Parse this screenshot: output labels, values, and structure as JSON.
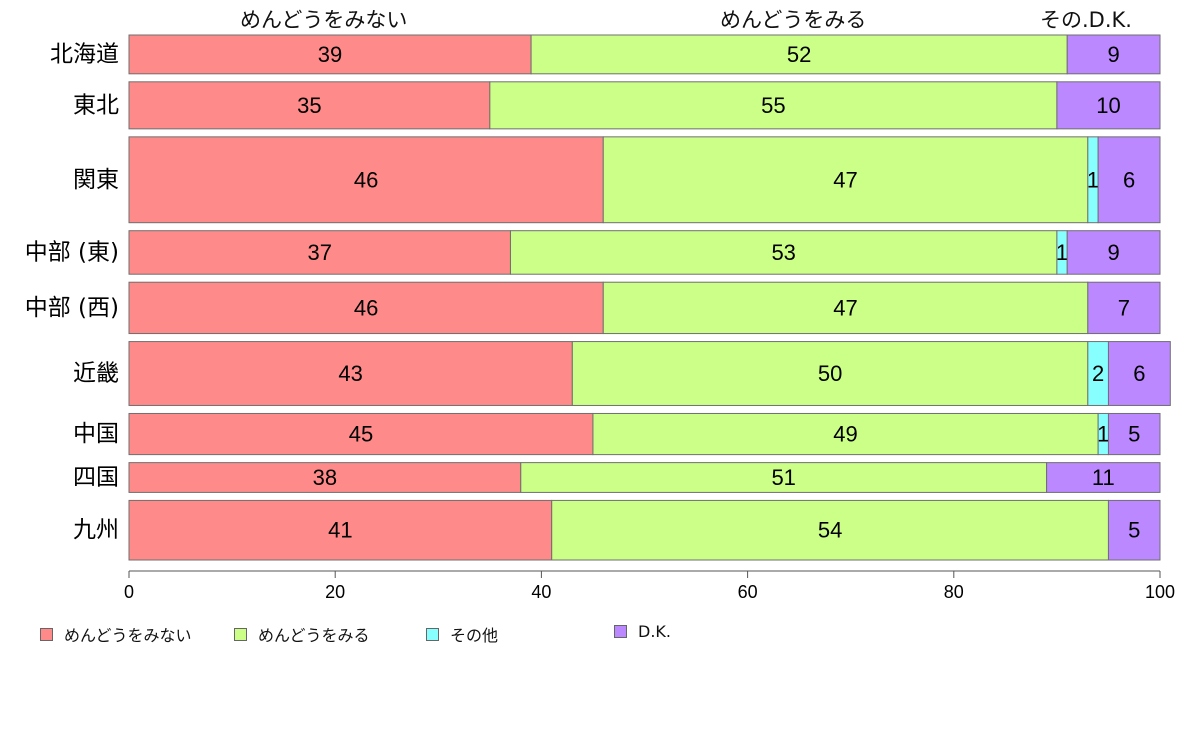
{
  "column_headers": [
    "めんどうをみない",
    "めんどうをみる",
    "その.D.K."
  ],
  "legend": [
    {
      "label": "めんどうをみない",
      "color": "#FF8A8A"
    },
    {
      "label": "めんどうをみる",
      "color": "#CCFF88"
    },
    {
      "label": "その他",
      "color": "#88FFFF"
    },
    {
      "label": "D.K.",
      "color": "#BB88FF"
    }
  ],
  "chart_data": {
    "type": "bar",
    "orientation": "horizontal-stacked",
    "categories": [
      "北海道",
      "東北",
      "関東",
      "中部 (東)",
      "中部 (西)",
      "近畿",
      "中国",
      "四国",
      "九州"
    ],
    "series": [
      {
        "name": "めんどうをみない",
        "values": [
          39,
          35,
          46,
          37,
          46,
          43,
          45,
          38,
          41
        ],
        "labels": [
          "39",
          "35",
          "46",
          "37",
          "46",
          "43",
          "45",
          "38",
          "41"
        ]
      },
      {
        "name": "めんどうをみる",
        "values": [
          52,
          55,
          47,
          53,
          47,
          50,
          49,
          51,
          54
        ],
        "labels": [
          "52",
          "55",
          "47",
          "53",
          "47",
          "50",
          "49",
          "51",
          "54"
        ]
      },
      {
        "name": "その他",
        "values": [
          0,
          0,
          1,
          1,
          0,
          2,
          1,
          0,
          0
        ],
        "labels": [
          "",
          "",
          "1",
          "1",
          "",
          "2",
          "1",
          "",
          ""
        ]
      },
      {
        "name": "D.K.",
        "values": [
          9,
          10,
          6,
          9,
          7,
          6,
          5,
          11,
          5
        ],
        "labels": [
          "9",
          "10",
          "6",
          "9",
          "7",
          "6",
          "5",
          "11",
          "5"
        ]
      }
    ],
    "row_weights": [
      0.99,
      1.2,
      2.19,
      1.11,
      1.31,
      1.63,
      1.05,
      0.76,
      1.52
    ],
    "xlim": [
      0,
      100
    ],
    "xticks": [
      "0",
      "20",
      "40",
      "60",
      "80",
      "100"
    ],
    "legend_position": "bottom"
  }
}
